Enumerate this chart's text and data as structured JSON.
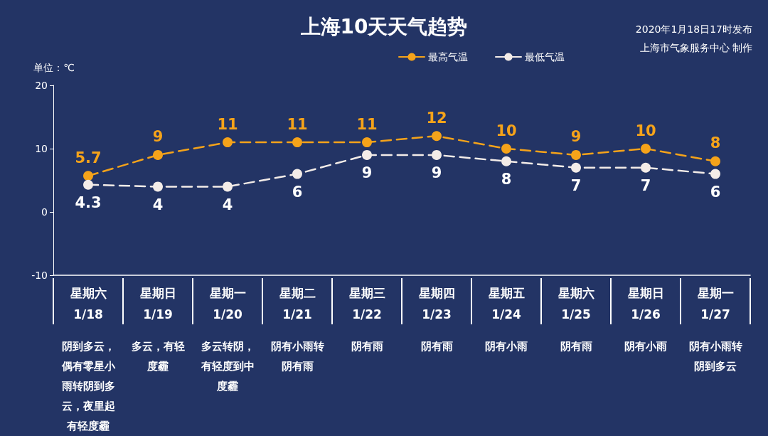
{
  "chart_data": {
    "type": "line",
    "title": "上海10天天气趋势",
    "ylabel": "单位：℃",
    "categories": [
      "星期六\n1/18",
      "星期日\n1/19",
      "星期一\n1/20",
      "星期二\n1/21",
      "星期三\n1/22",
      "星期四\n1/23",
      "星期五\n1/24",
      "星期六\n1/25",
      "星期日\n1/26",
      "星期一\n1/27"
    ],
    "series": [
      {
        "name": "最高气温",
        "color": "#f5a31a",
        "values": [
          5.7,
          9,
          11,
          11,
          11,
          12,
          10,
          9,
          10,
          8
        ]
      },
      {
        "name": "最低气温",
        "color": "#f3ece8",
        "values": [
          4.3,
          4,
          4,
          6,
          9,
          9,
          8,
          7,
          7,
          6
        ]
      }
    ],
    "ylim": [
      -10,
      20
    ],
    "yticks": [
      -10,
      0,
      10,
      20
    ],
    "grid": false,
    "legend": "top",
    "marker": "circle",
    "line_style": "dashed",
    "data_labels": true,
    "annotations": [
      "2020年1月18日17时发布",
      "上海市气象服务中心 制作",
      "阴到多云，偶有零星小雨转阴到多云，夜里起有轻度霾",
      "多云，有轻度霾",
      "多云转阴，有轻度到中度霾",
      "阴有小雨转阴有雨",
      "阴有雨",
      "阴有雨",
      "阴有小雨",
      "阴有雨",
      "阴有小雨",
      "阴有小雨转阴到多云"
    ]
  }
}
